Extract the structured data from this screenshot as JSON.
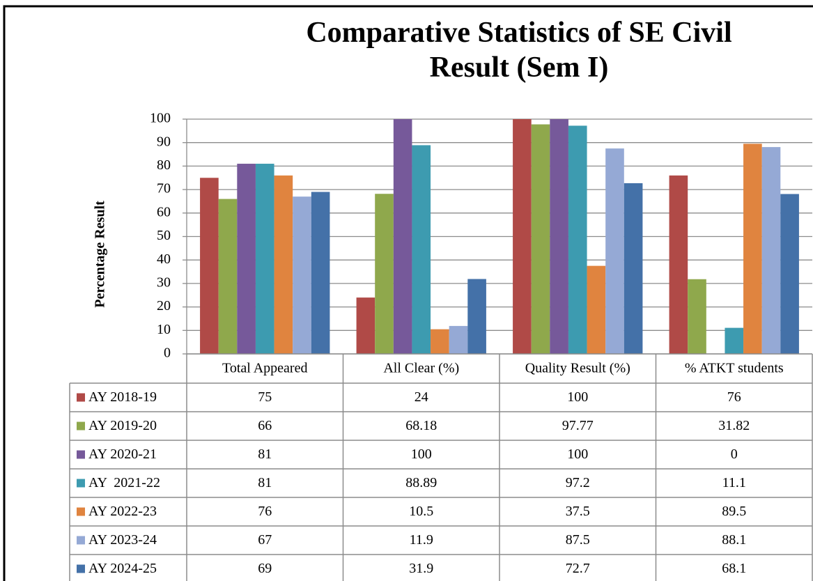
{
  "chart_data": {
    "type": "bar",
    "title": "Comparative Statistics of SE Civil Result (Sem I)",
    "ylabel": "Percentage Result",
    "categories": [
      "Total Appeared",
      "All Clear (%)",
      "Quality Result (%)",
      "% ATKT students"
    ],
    "series": [
      {
        "name": "AY 2018-19",
        "color": "#b04a47",
        "values": [
          75,
          24,
          100,
          76
        ]
      },
      {
        "name": "AY 2019-20",
        "color": "#8fa84c",
        "values": [
          66,
          68.18,
          97.77,
          31.82
        ]
      },
      {
        "name": "AY 2020-21",
        "color": "#76599a",
        "values": [
          81,
          100,
          100,
          0
        ]
      },
      {
        "name": "AY  2021-22",
        "color": "#3d9bb0",
        "values": [
          81,
          88.89,
          97.2,
          11.1
        ]
      },
      {
        "name": "AY 2022-23",
        "color": "#e0843f",
        "values": [
          76,
          10.5,
          37.5,
          89.5
        ]
      },
      {
        "name": "AY 2023-24",
        "color": "#95a9d5",
        "values": [
          67,
          11.9,
          87.5,
          88.1
        ]
      },
      {
        "name": "AY 2024-25",
        "color": "#4471a8",
        "values": [
          69,
          31.9,
          72.7,
          68.1
        ]
      }
    ],
    "ylim": [
      0,
      100
    ],
    "yticks": [
      0,
      10,
      20,
      30,
      40,
      50,
      60,
      70,
      80,
      90,
      100
    ],
    "grid": true,
    "legend": "table"
  }
}
